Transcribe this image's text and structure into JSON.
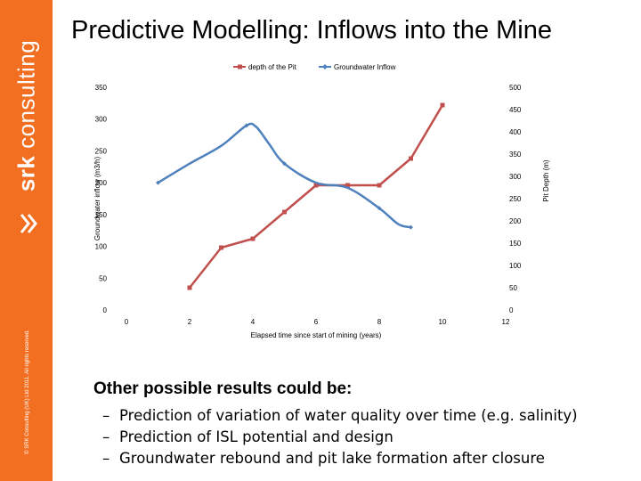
{
  "brand": {
    "logo_text_bold": "srk",
    "logo_text_rest": " consulting",
    "copyright": "© SRK Consulting (UK) Ltd 2011. All rights reserved."
  },
  "slide": {
    "title": "Predictive Modelling: Inflows into the Mine",
    "subheading": "Other possible results could be:",
    "bullets": [
      "Prediction of variation of water quality over time (e.g. salinity)",
      "Prediction of ISL potential and design",
      "Groundwater rebound and pit lake formation after closure"
    ],
    "bullet_marker": "–"
  },
  "colors": {
    "sidebar": "#f26f21",
    "groundwater": "#4f81bd",
    "pit_depth": "#c0504d"
  },
  "chart_data": {
    "type": "line",
    "xlabel": "Elapsed time since start of mining (years)",
    "ylabel": "Groundwater inflow (m3/h)",
    "y2label": "Pit Depth (m)",
    "xlim": [
      0,
      12
    ],
    "ylim": [
      0,
      350
    ],
    "y2lim": [
      0,
      500
    ],
    "x_ticks": [
      "0",
      "2",
      "4",
      "6",
      "8",
      "10",
      "12"
    ],
    "y_ticks": [
      "0",
      "50",
      "100",
      "150",
      "200",
      "250",
      "300",
      "350"
    ],
    "y2_ticks": [
      "0",
      "50",
      "100",
      "150",
      "200",
      "250",
      "300",
      "350",
      "400",
      "450",
      "500"
    ],
    "grid": false,
    "legend_position": "top",
    "series": [
      {
        "name": "depth of the Pit",
        "axis": "right",
        "marker": "square",
        "points": [
          [
            2,
            50
          ],
          [
            3,
            140
          ],
          [
            4,
            160
          ],
          [
            5,
            220
          ],
          [
            6,
            280
          ],
          [
            7,
            280
          ],
          [
            8,
            280
          ],
          [
            9,
            340
          ],
          [
            10,
            460
          ]
        ]
      },
      {
        "name": "Groundwater Inflow",
        "axis": "left",
        "marker": "diamond",
        "points": [
          [
            1,
            200
          ],
          [
            2,
            230
          ],
          [
            3,
            258
          ],
          [
            3.8,
            290
          ],
          [
            4.1,
            288
          ],
          [
            4.5,
            262
          ],
          [
            5,
            230
          ],
          [
            6,
            200
          ],
          [
            7,
            192
          ],
          [
            8,
            160
          ],
          [
            8.6,
            135
          ],
          [
            9,
            130
          ]
        ]
      }
    ]
  }
}
